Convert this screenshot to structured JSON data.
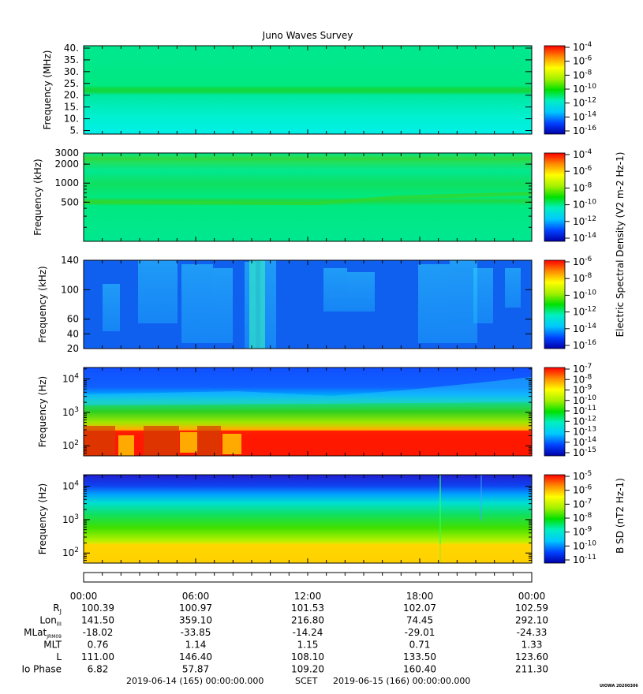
{
  "chart_data": {
    "type": "heatmap",
    "title": "Juno Waves Survey",
    "footer": {
      "start": "2019-06-14 (165) 00:00:00.000",
      "scet": "SCET",
      "end": "2019-06-15 (166) 00:00:00.000",
      "stamp": "UIOWA 20200306"
    },
    "x_ticks": [
      "00:00",
      "06:00",
      "12:00",
      "18:00",
      "00:00"
    ],
    "ephemeris": [
      {
        "label": "RJ",
        "values": [
          "100.39",
          "100.97",
          "101.53",
          "102.07",
          "102.59"
        ]
      },
      {
        "label": "LonIII",
        "values": [
          "141.50",
          "359.10",
          "216.80",
          "74.45",
          "292.10"
        ]
      },
      {
        "label": "MLatJRM09",
        "values": [
          "-18.02",
          "-33.85",
          "-14.24",
          "-29.01",
          "-24.33"
        ]
      },
      {
        "label": "MLT",
        "values": [
          "0.76",
          "1.14",
          "1.15",
          "0.71",
          "1.33"
        ]
      },
      {
        "label": "L",
        "values": [
          "111.00",
          "146.40",
          "108.10",
          "133.50",
          "123.60"
        ]
      },
      {
        "label": "Io Phase",
        "values": [
          "6.82",
          "57.87",
          "109.20",
          "160.40",
          "211.30"
        ]
      }
    ],
    "panels": [
      {
        "ylabel": "Frequency (MHz)",
        "y_ticks": [
          "40.",
          "35.",
          "30.",
          "25.",
          "20.",
          "15.",
          "10.",
          "5."
        ],
        "colorbar_ticks": [
          "10-4",
          "10-6",
          "10-8",
          "10-10",
          "10-12",
          "10-14",
          "10-16"
        ],
        "colorbar_label": ""
      },
      {
        "ylabel": "Frequency (kHz)",
        "y_ticks": [
          "3000",
          "2000",
          "1000",
          "500"
        ],
        "colorbar_ticks": [
          "10-4",
          "10-6",
          "10-8",
          "10-10",
          "10-12",
          "10-14"
        ],
        "colorbar_label": "Electric Spectral Density (V2 m-2 Hz-1)"
      },
      {
        "ylabel": "Frequency (kHz)",
        "y_ticks": [
          "140",
          "100",
          "60",
          "40",
          "20"
        ],
        "colorbar_ticks": [
          "10-6",
          "10-8",
          "10-10",
          "10-12",
          "10-14",
          "10-16"
        ],
        "colorbar_label": ""
      },
      {
        "ylabel": "Frequency (Hz)",
        "y_ticks": [
          "104",
          "103",
          "102"
        ],
        "colorbar_ticks": [
          "10-7",
          "10-8",
          "10-9",
          "10-10",
          "10-11",
          "10-12",
          "10-13",
          "10-14",
          "10-15"
        ],
        "colorbar_label": ""
      },
      {
        "ylabel": "Frequency (Hz)",
        "y_ticks": [
          "104",
          "103",
          "102"
        ],
        "colorbar_ticks": [
          "10-5",
          "10-6",
          "10-7",
          "10-8",
          "10-9",
          "10-10",
          "10-11"
        ],
        "colorbar_label": "B SD (nT2 Hz-1)"
      }
    ]
  }
}
